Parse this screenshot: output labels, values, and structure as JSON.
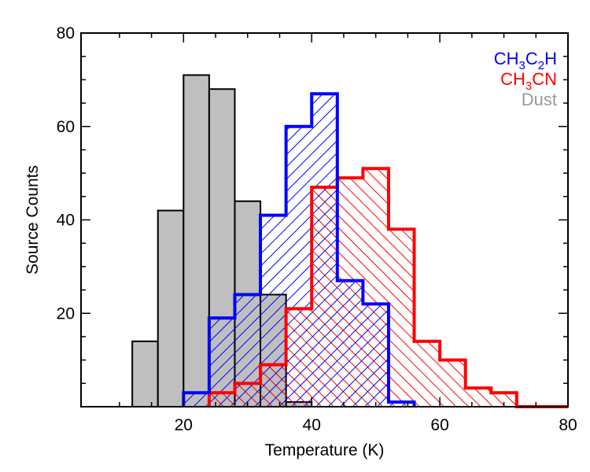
{
  "chart_data": {
    "type": "histogram",
    "title": "",
    "xlabel": "Temperature (K)",
    "ylabel": "Source Counts",
    "xlim": [
      4,
      80
    ],
    "ylim": [
      0,
      80
    ],
    "xticks": [
      20,
      40,
      60,
      80
    ],
    "yticks": [
      20,
      40,
      60,
      80
    ],
    "grid": false,
    "legend": {
      "position": "top-right",
      "entries": [
        {
          "series": "CH3C2H",
          "base": "CH",
          "sub1": "3",
          "mid": "C",
          "sub2": "2",
          "tail": "H",
          "color": "#0000ff"
        },
        {
          "series": "CH3CN",
          "base": "CH",
          "sub1": "3",
          "mid": "CN",
          "sub2": "",
          "tail": "",
          "color": "#ff0000"
        },
        {
          "series": "Dust",
          "base": "Dust",
          "sub1": "",
          "mid": "",
          "sub2": "",
          "tail": "",
          "color": "#999999"
        }
      ]
    },
    "series": [
      {
        "name": "Dust",
        "style": "filled",
        "color": "#000000",
        "fill": "#bfbfbf",
        "bin_edges": [
          12,
          16,
          20,
          24,
          28,
          32,
          36,
          40
        ],
        "counts": [
          14,
          42,
          71,
          68,
          44,
          24,
          1
        ]
      },
      {
        "name": "CH3C2H",
        "style": "hatch-back",
        "color": "#0000ff",
        "bin_edges": [
          20,
          24,
          28,
          32,
          36,
          40,
          44,
          48,
          52,
          56
        ],
        "counts": [
          3,
          19,
          24,
          41,
          60,
          67,
          27,
          22,
          1
        ]
      },
      {
        "name": "CH3CN",
        "style": "hatch-fwd",
        "color": "#ff0000",
        "bin_edges": [
          24,
          28,
          32,
          36,
          40,
          44,
          48,
          52,
          56,
          60,
          64,
          68,
          72,
          76,
          80
        ],
        "counts": [
          3,
          5,
          9,
          21,
          47,
          49,
          51,
          38,
          14,
          10,
          4,
          3,
          0,
          0
        ]
      }
    ]
  }
}
